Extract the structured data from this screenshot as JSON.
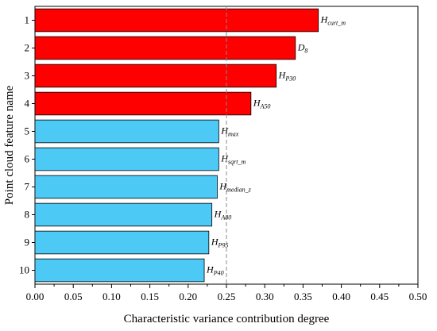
{
  "chart_data": {
    "type": "bar",
    "orientation": "horizontal",
    "xlabel": "Characteristic variance contribution degree",
    "ylabel": "Point cloud feature name",
    "xlim": [
      0,
      0.5
    ],
    "x_ticks": [
      "0.00",
      "0.05",
      "0.10",
      "0.15",
      "0.20",
      "0.25",
      "0.30",
      "0.35",
      "0.40",
      "0.45",
      "0.50"
    ],
    "threshold": 0.25,
    "categories": [
      "1",
      "2",
      "3",
      "4",
      "5",
      "6",
      "7",
      "8",
      "9",
      "10"
    ],
    "values": [
      0.37,
      0.34,
      0.315,
      0.282,
      0.24,
      0.24,
      0.238,
      0.231,
      0.227,
      0.221
    ],
    "bar_labels": [
      {
        "main": "H",
        "sub": "curt_m"
      },
      {
        "main": "D",
        "sub": "8"
      },
      {
        "main": "H",
        "sub": "P30"
      },
      {
        "main": "H",
        "sub": "A50"
      },
      {
        "main": "H",
        "sub": "max"
      },
      {
        "main": "H",
        "sub": "sqrt_m"
      },
      {
        "main": "H",
        "sub": "median_z"
      },
      {
        "main": "H",
        "sub": "A80"
      },
      {
        "main": "H",
        "sub": "P95"
      },
      {
        "main": "H",
        "sub": "P40"
      }
    ],
    "colors": [
      "#ff0000",
      "#ff0000",
      "#ff0000",
      "#ff0000",
      "#4dc9f6",
      "#4dc9f6",
      "#4dc9f6",
      "#4dc9f6",
      "#4dc9f6",
      "#4dc9f6"
    ],
    "grid": false,
    "legend": "none"
  }
}
